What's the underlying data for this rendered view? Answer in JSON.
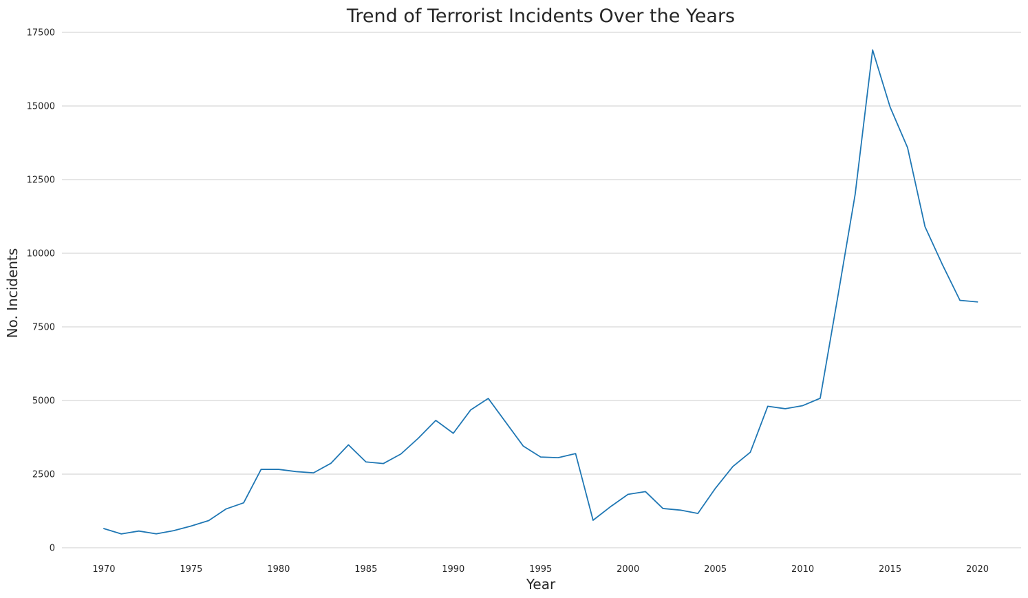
{
  "chart_data": {
    "type": "line",
    "title": "Trend of Terrorist Incidents Over the Years",
    "xlabel": "Year",
    "ylabel": "No. Incidents",
    "xlim": [
      1967.6,
      2022.5
    ],
    "ylim": [
      0,
      17500
    ],
    "xticks": [
      1970,
      1975,
      1980,
      1985,
      1990,
      1995,
      2000,
      2005,
      2010,
      2015,
      2020
    ],
    "yticks": [
      0,
      2500,
      5000,
      7500,
      10000,
      12500,
      15000,
      17500
    ],
    "grid": "horizontal",
    "colors": {
      "line": "#1f77b4",
      "grid": "#cccccc",
      "text": "#262626"
    },
    "series": [
      {
        "x": [
          1970,
          1971,
          1972,
          1973,
          1974,
          1975,
          1976,
          1977,
          1978,
          1979,
          1980,
          1981,
          1982,
          1983,
          1984,
          1985,
          1986,
          1987,
          1988,
          1989,
          1990,
          1991,
          1992,
          1993,
          1994,
          1995,
          1996,
          1997,
          1998,
          1999,
          2000,
          2001,
          2002,
          2003,
          2004,
          2005,
          2006,
          2007,
          2008,
          2009,
          2010,
          2011,
          2012,
          2013,
          2014,
          2015,
          2016,
          2017,
          2018,
          2019,
          2020
        ],
        "values": [
          651,
          471,
          568,
          473,
          581,
          740,
          923,
          1319,
          1526,
          2662,
          2662,
          2586,
          2544,
          2870,
          3495,
          2915,
          2860,
          3183,
          3721,
          4324,
          3887,
          4683,
          5071,
          null,
          3456,
          3081,
          3058,
          3197,
          934,
          1395,
          1814,
          1906,
          1333,
          1278,
          1166,
          2017,
          2758,
          3242,
          4805,
          4721,
          4826,
          5076,
          8500,
          11996,
          16903,
          14965,
          13587,
          10900,
          9607,
          8400,
          8346
        ]
      }
    ]
  }
}
